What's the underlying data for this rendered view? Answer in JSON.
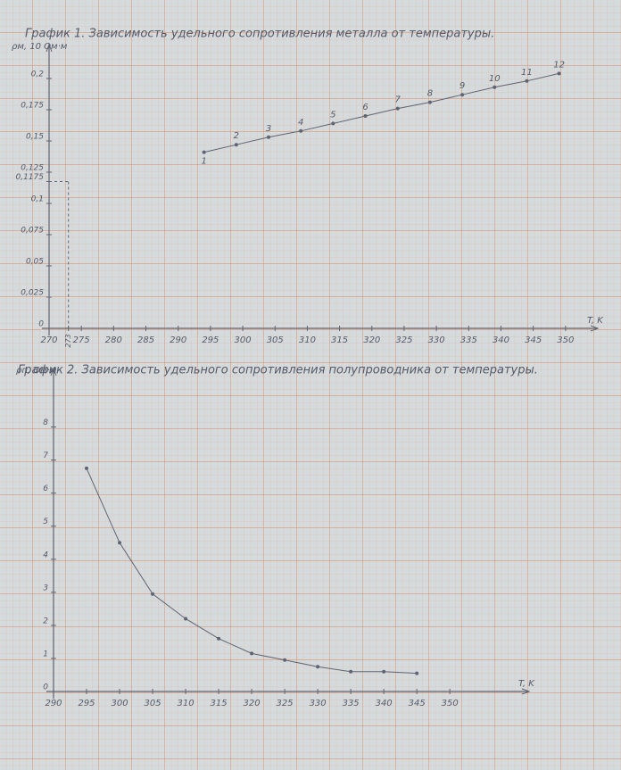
{
  "chart_data": [
    {
      "type": "line",
      "title": "График 1. Зависимость удельного сопротивления металла от температуры.",
      "y_label": "ρм, 10 Ом·м",
      "x_label": "T, K",
      "xlim": [
        270,
        355
      ],
      "ylim": [
        0,
        0.22
      ],
      "xticks": [
        270,
        273,
        275,
        280,
        285,
        290,
        295,
        300,
        305,
        310,
        315,
        320,
        325,
        330,
        335,
        340,
        345,
        350
      ],
      "yticks": [
        0,
        {
          "value": 0.025,
          "label": "0,025"
        },
        {
          "value": 0.05,
          "label": "0,05"
        },
        {
          "value": 0.075,
          "label": "0,075"
        },
        {
          "value": 0.1,
          "label": "0,1"
        },
        {
          "value": 0.1175,
          "label": "0,1175"
        },
        {
          "value": 0.125,
          "label": "0,125"
        },
        {
          "value": 0.15,
          "label": "0,15"
        },
        {
          "value": 0.175,
          "label": "0,175"
        },
        {
          "value": 0.2,
          "label": "0,2"
        }
      ],
      "series": [
        {
          "color": "#5f6470",
          "x": [
            294,
            299,
            304,
            309,
            314,
            319,
            324,
            329,
            334,
            339,
            344,
            349
          ],
          "values": [
            0.141,
            0.147,
            0.153,
            0.158,
            0.164,
            0.17,
            0.176,
            0.181,
            0.187,
            0.193,
            0.198,
            0.204
          ],
          "point_labels": [
            "1",
            "2",
            "3",
            "4",
            "5",
            "6",
            "7",
            "8",
            "9",
            "10",
            "11",
            "12"
          ]
        }
      ]
    },
    {
      "type": "line",
      "title": "График 2. Зависимость удельного сопротивления полупроводника от температуры.",
      "y_label": "ρп, Ом·м",
      "x_label": "T, K",
      "xlim": [
        290,
        362
      ],
      "ylim": [
        0,
        9.5
      ],
      "xticks": [
        290,
        295,
        300,
        305,
        310,
        315,
        320,
        325,
        330,
        335,
        340,
        345,
        350
      ],
      "yticks": [
        0,
        1,
        2,
        3,
        4,
        5,
        6,
        7,
        8
      ],
      "series": [
        {
          "color": "#5f6470",
          "x": [
            295,
            300,
            305,
            310,
            315,
            320,
            325,
            330,
            335,
            340,
            345
          ],
          "values": [
            6.75,
            4.5,
            2.95,
            2.2,
            1.6,
            1.15,
            0.95,
            0.75,
            0.6,
            0.6,
            0.55
          ]
        }
      ]
    }
  ]
}
